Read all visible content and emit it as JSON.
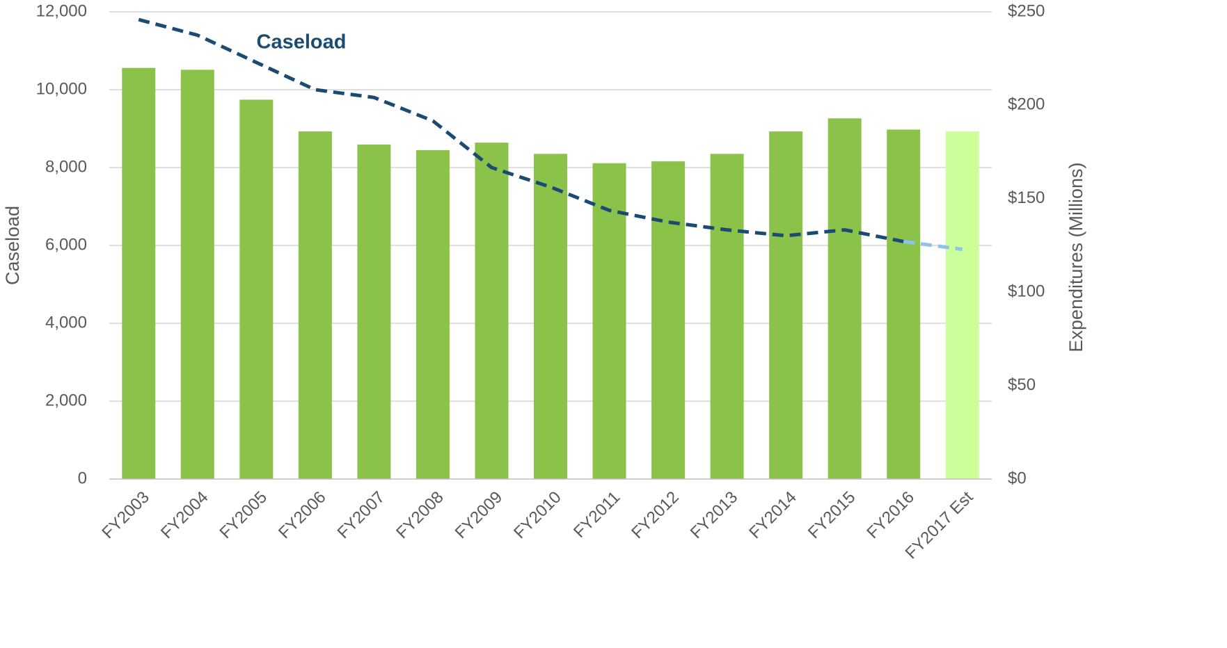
{
  "chart_data": {
    "type": "bar",
    "categories": [
      "FY2003",
      "FY2004",
      "FY2005",
      "FY2006",
      "FY2007",
      "FY2008",
      "FY2009",
      "FY2010",
      "FY2011",
      "FY2012",
      "FY2013",
      "FY2014",
      "FY2015",
      "FY2016",
      "FY2017 Est"
    ],
    "series": [
      {
        "name": "Expenditures",
        "type": "bar",
        "axis": "y2",
        "colors": [
          "#8bc34a",
          "#8bc34a",
          "#8bc34a",
          "#8bc34a",
          "#8bc34a",
          "#8bc34a",
          "#8bc34a",
          "#8bc34a",
          "#8bc34a",
          "#8bc34a",
          "#8bc34a",
          "#8bc34a",
          "#8bc34a",
          "#8bc34a",
          "#ccff99"
        ],
        "values": [
          220,
          219,
          203,
          186,
          179,
          176,
          180,
          174,
          169,
          170,
          174,
          186,
          193,
          187,
          186
        ]
      },
      {
        "name": "Caseload",
        "type": "line",
        "axis": "y",
        "color": "#1b4b72",
        "estimate_color": "#8ec3ea",
        "values": [
          11800,
          11400,
          10700,
          10000,
          9800,
          9200,
          8000,
          7500,
          6900,
          6600,
          6400,
          6250,
          6400,
          6100,
          5900
        ]
      }
    ],
    "annotation": "Caseload",
    "ylabel": "Caseload",
    "y2label": "Expenditures (Millions)",
    "ylim": [
      0,
      12000
    ],
    "yticks": [
      0,
      {
        "value": 2000,
        "label": "2,000"
      },
      {
        "value": 4000,
        "label": "4,000"
      },
      {
        "value": 6000,
        "label": "6,000"
      },
      {
        "value": 8000,
        "label": "8,000"
      },
      {
        "value": 10000,
        "label": "10,000"
      },
      {
        "value": 12000,
        "label": "12,000"
      }
    ],
    "y2lim": [
      0,
      250
    ],
    "y2ticks": [
      {
        "value": 0,
        "label": "$0"
      },
      {
        "value": 50,
        "label": "$50"
      },
      {
        "value": 100,
        "label": "$100"
      },
      {
        "value": 150,
        "label": "$150"
      },
      {
        "value": 200,
        "label": "$200"
      },
      {
        "value": 250,
        "label": "$250"
      }
    ],
    "grid": true
  }
}
